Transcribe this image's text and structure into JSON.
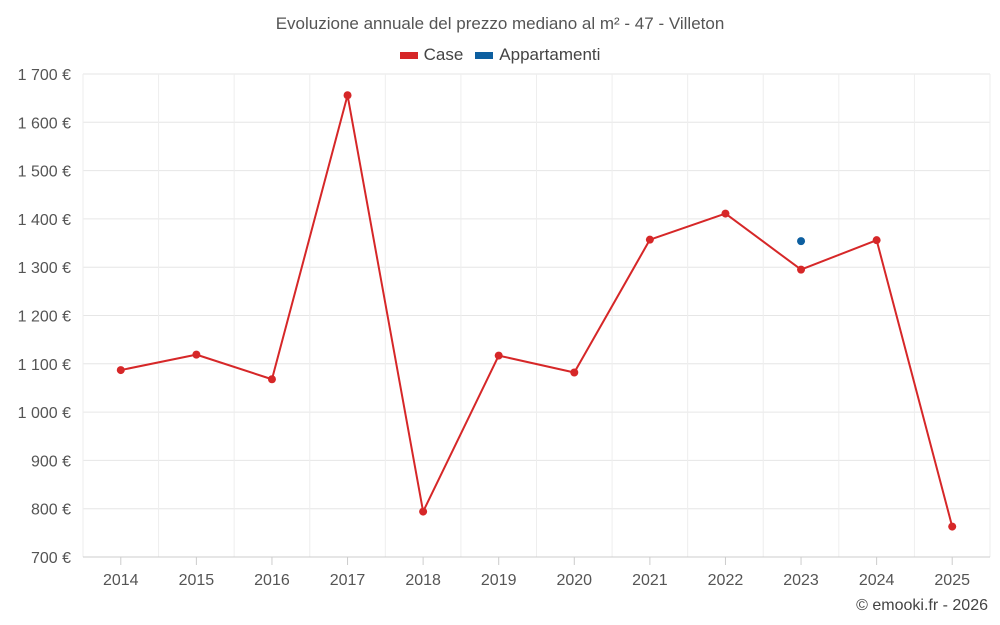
{
  "chart_data": {
    "type": "line",
    "title": "Evoluzione annuale del prezzo mediano al m² - 47 - Villeton",
    "categories": [
      "2014",
      "2015",
      "2016",
      "2017",
      "2018",
      "2019",
      "2020",
      "2021",
      "2022",
      "2023",
      "2024",
      "2025"
    ],
    "series": [
      {
        "name": "Case",
        "color": "#d62728",
        "values": [
          1087,
          1119,
          1068,
          1656,
          794,
          1117,
          1082,
          1357,
          1411,
          1295,
          1356,
          763
        ]
      },
      {
        "name": "Appartamenti",
        "color": "#0d5fa0",
        "values": [
          null,
          null,
          null,
          null,
          null,
          null,
          null,
          null,
          null,
          1354,
          null,
          null
        ]
      }
    ],
    "ylim": [
      700,
      1700
    ],
    "yticks": [
      700,
      800,
      900,
      1000,
      1100,
      1200,
      1300,
      1400,
      1500,
      1600,
      1700
    ],
    "ytick_labels": [
      "700 €",
      "800 €",
      "900 €",
      "1 000 €",
      "1 100 €",
      "1 200 €",
      "1 300 €",
      "1 400 €",
      "1 500 €",
      "1 600 €",
      "1 700 €"
    ],
    "xlabel": "",
    "ylabel": "",
    "grid": true,
    "legend_position": "top-center"
  },
  "credit": "© emooki.fr - 2026"
}
